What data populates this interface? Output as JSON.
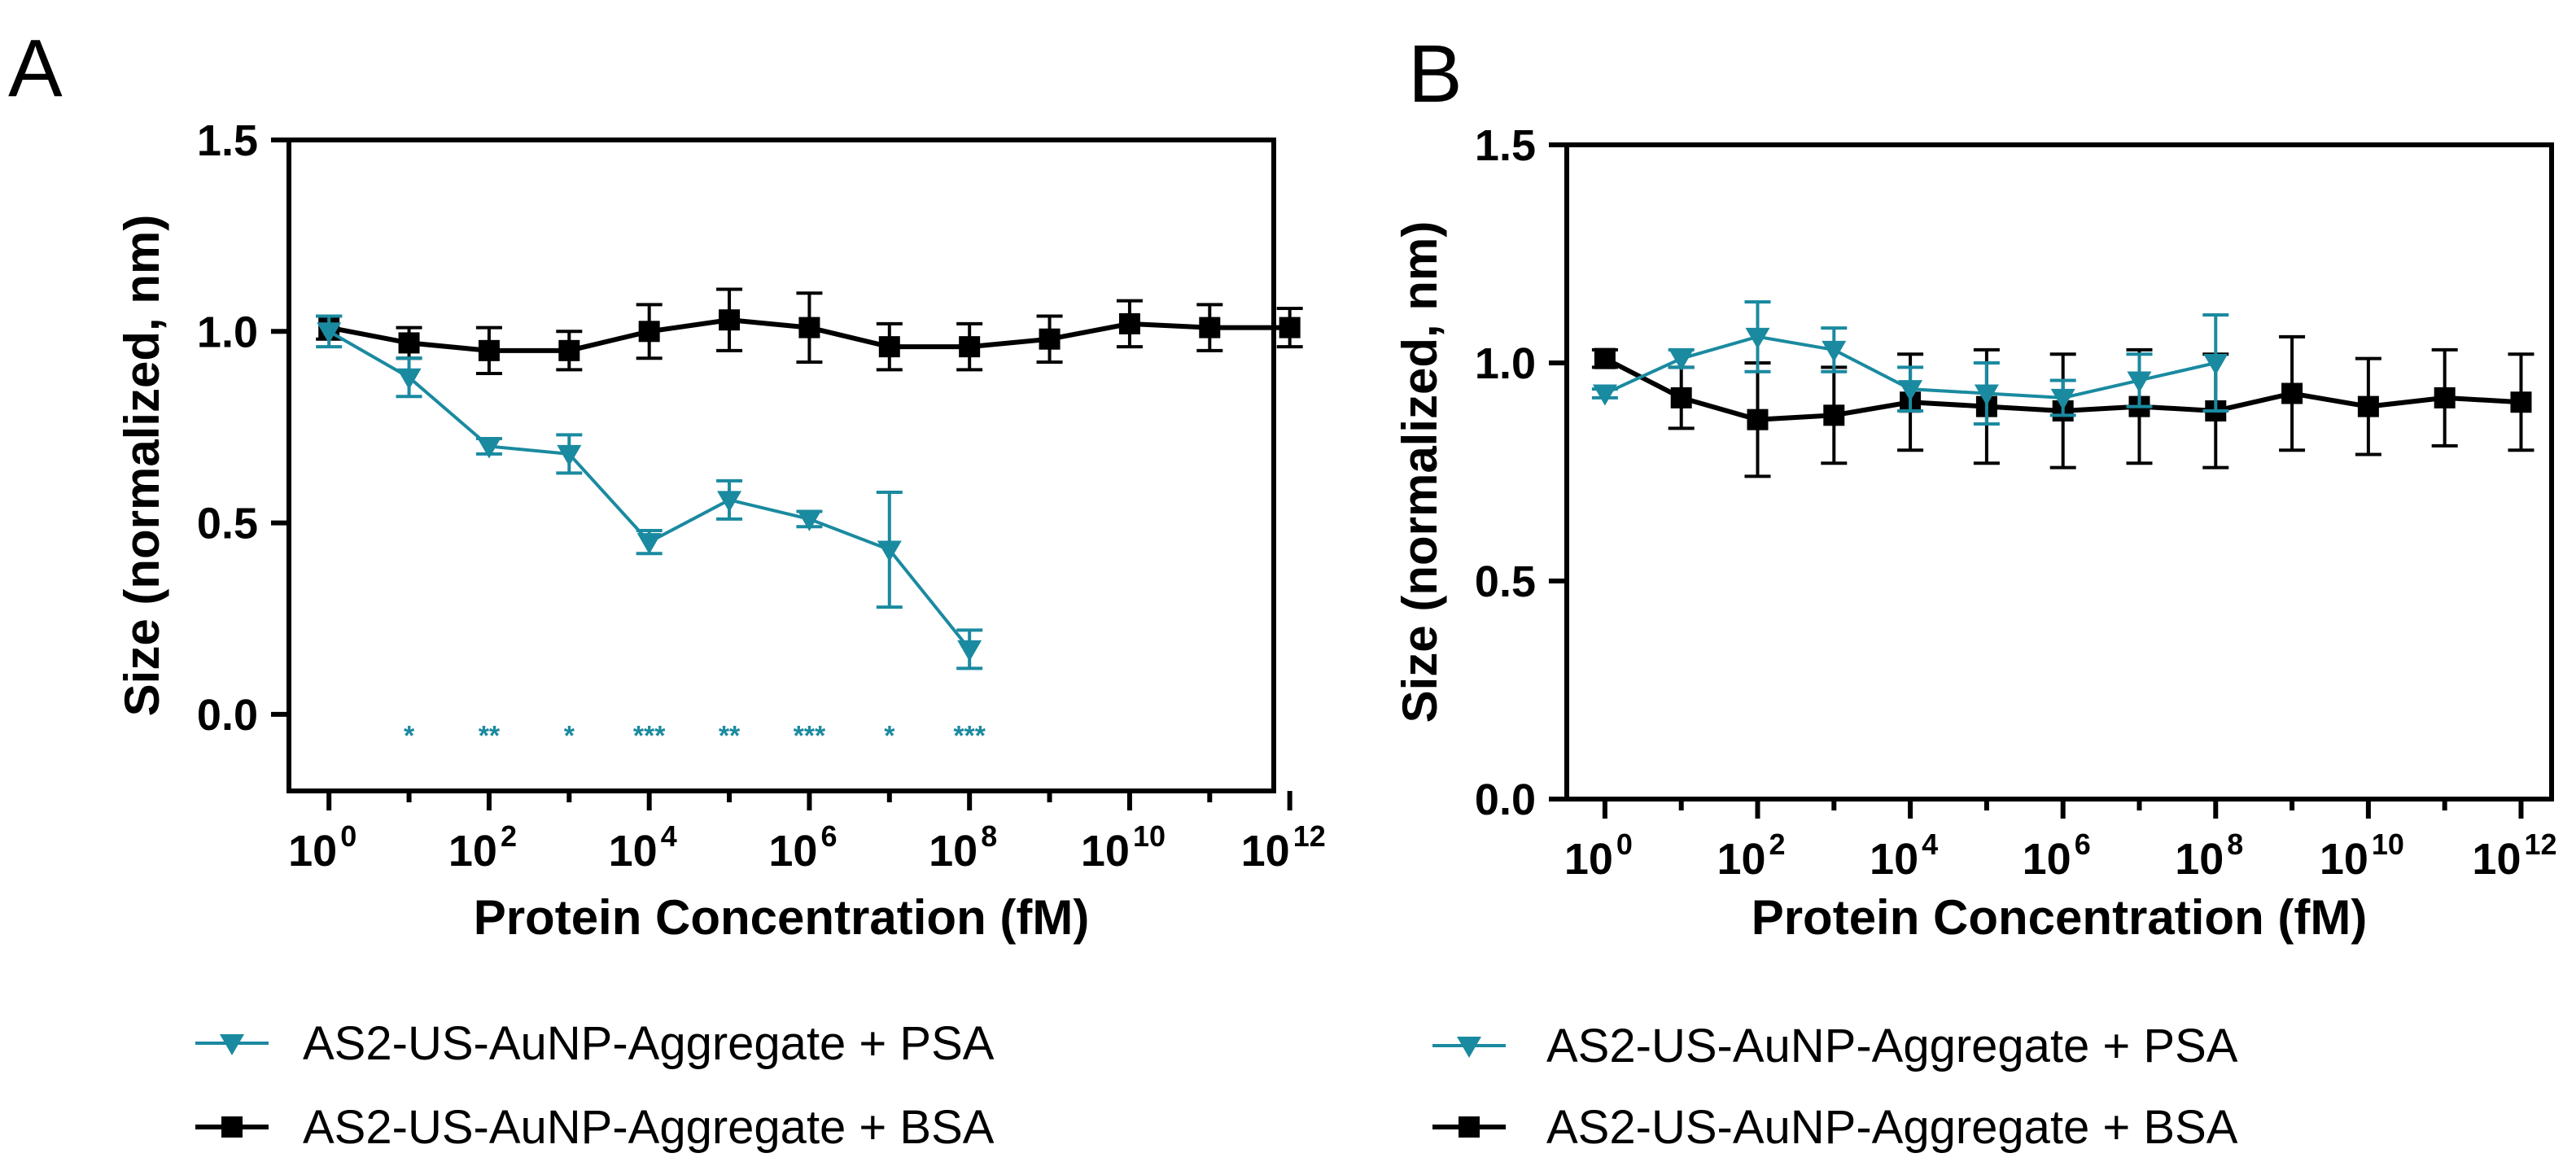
{
  "colors": {
    "psa": "#1a8aa0",
    "bsa": "#000000"
  },
  "chart_data": [
    {
      "type": "line",
      "panel_label": "A",
      "xlabel": "Protein Concentration (fM)",
      "ylabel": "Size (normalized, nm)",
      "x_scale": "log10",
      "xlim_exp": [
        -0.5,
        11.8
      ],
      "ylim": [
        -0.2,
        1.5
      ],
      "y_ticks": [
        "1.5",
        "1.0",
        "0.5",
        "0.0"
      ],
      "x_tick_labels": [
        {
          "base": "10",
          "exp": "0"
        },
        {
          "base": "10",
          "exp": "2"
        },
        {
          "base": "10",
          "exp": "4"
        },
        {
          "base": "10",
          "exp": "6"
        },
        {
          "base": "10",
          "exp": "8"
        },
        {
          "base": "10",
          "exp": "10"
        },
        {
          "base": "10",
          "exp": "12"
        }
      ],
      "series": [
        {
          "name": "AS2-US-AuNP-Aggregate + PSA",
          "marker": "triangle-down",
          "x_exp": [
            0,
            1,
            2,
            3,
            4,
            5,
            6,
            7,
            8
          ],
          "y": [
            1.0,
            0.88,
            0.7,
            0.68,
            0.45,
            0.56,
            0.51,
            0.43,
            0.17
          ],
          "err": [
            0.04,
            0.05,
            0.02,
            0.05,
            0.03,
            0.05,
            0.02,
            0.15,
            0.05
          ]
        },
        {
          "name": "AS2-US-AuNP-Aggregate + BSA",
          "marker": "square",
          "x_exp": [
            0,
            1,
            2,
            3,
            4,
            5,
            6,
            7,
            8,
            9,
            10,
            11,
            12
          ],
          "y": [
            1.01,
            0.97,
            0.95,
            0.95,
            1.0,
            1.03,
            1.01,
            0.96,
            0.96,
            0.98,
            1.02,
            1.01,
            1.01
          ],
          "err": [
            0.03,
            0.04,
            0.06,
            0.05,
            0.07,
            0.08,
            0.09,
            0.06,
            0.06,
            0.06,
            0.06,
            0.06,
            0.05
          ]
        }
      ],
      "annotations": [
        {
          "x_exp": 1,
          "text": "*"
        },
        {
          "x_exp": 2,
          "text": "**"
        },
        {
          "x_exp": 3,
          "text": "*"
        },
        {
          "x_exp": 4,
          "text": "***"
        },
        {
          "x_exp": 5,
          "text": "**"
        },
        {
          "x_exp": 6,
          "text": "***"
        },
        {
          "x_exp": 7,
          "text": "*"
        },
        {
          "x_exp": 8,
          "text": "***"
        }
      ],
      "annotation_y": -0.05,
      "legend": [
        "AS2-US-AuNP-Aggregate + PSA",
        "AS2-US-AuNP-Aggregate + BSA"
      ]
    },
    {
      "type": "line",
      "panel_label": "B",
      "xlabel": "Protein Concentration (fM)",
      "ylabel": "Size (normalized, nm)",
      "x_scale": "log10",
      "xlim_exp": [
        -0.5,
        12.4
      ],
      "ylim": [
        0.0,
        1.5
      ],
      "y_ticks": [
        "1.5",
        "1.0",
        "0.5",
        "0.0"
      ],
      "x_tick_labels": [
        {
          "base": "10",
          "exp": "0"
        },
        {
          "base": "10",
          "exp": "2"
        },
        {
          "base": "10",
          "exp": "4"
        },
        {
          "base": "10",
          "exp": "6"
        },
        {
          "base": "10",
          "exp": "8"
        },
        {
          "base": "10",
          "exp": "10"
        },
        {
          "base": "10",
          "exp": "12"
        }
      ],
      "series": [
        {
          "name": "AS2-US-AuNP-Aggregate + PSA",
          "marker": "triangle-down",
          "x_exp": [
            0,
            1,
            2,
            3,
            4,
            5,
            6,
            7,
            8
          ],
          "y": [
            0.93,
            1.01,
            1.06,
            1.03,
            0.94,
            0.93,
            0.92,
            0.96,
            1.0
          ],
          "err": [
            0.01,
            0.02,
            0.08,
            0.05,
            0.05,
            0.07,
            0.04,
            0.06,
            0.11
          ]
        },
        {
          "name": "AS2-US-AuNP-Aggregate + BSA",
          "marker": "square",
          "x_exp": [
            0,
            1,
            2,
            3,
            4,
            5,
            6,
            7,
            8,
            9,
            10,
            11,
            12
          ],
          "y": [
            1.01,
            0.92,
            0.87,
            0.88,
            0.91,
            0.9,
            0.89,
            0.9,
            0.89,
            0.93,
            0.9,
            0.92,
            0.91
          ],
          "err": [
            0.02,
            0.07,
            0.13,
            0.11,
            0.11,
            0.13,
            0.13,
            0.13,
            0.13,
            0.13,
            0.11,
            0.11,
            0.11
          ]
        }
      ],
      "legend": [
        "AS2-US-AuNP-Aggregate + PSA",
        "AS2-US-AuNP-Aggregate + BSA"
      ]
    }
  ]
}
